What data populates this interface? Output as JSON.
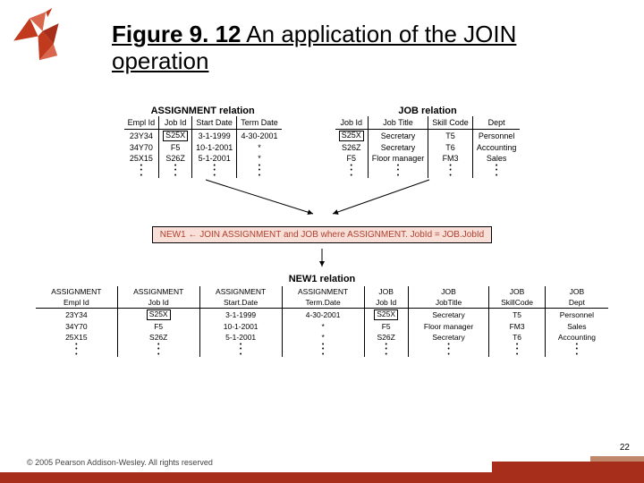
{
  "logo_color": "#c23a1e",
  "title": {
    "bold": "Figure 9. 12",
    "rest": "  An application of the JOIN operation"
  },
  "assignment": {
    "title": "ASSIGNMENT relation",
    "columns": [
      "Empl Id",
      "Job Id",
      "Start Date",
      "Term Date"
    ],
    "rows": [
      [
        "23Y34",
        "S25X",
        "3-1-1999",
        "4-30-2001"
      ],
      [
        "34Y70",
        "F5",
        "10-1-2001",
        "*"
      ],
      [
        "25X15",
        "S26Z",
        "5-1-2001",
        "*"
      ]
    ],
    "boxed_cell": {
      "row": 0,
      "col": 1
    }
  },
  "job": {
    "title": "JOB relation",
    "columns": [
      "Job Id",
      "Job Title",
      "Skill Code",
      "Dept"
    ],
    "rows": [
      [
        "S25X",
        "Secretary",
        "T5",
        "Personnel"
      ],
      [
        "S26Z",
        "Secretary",
        "T6",
        "Accounting"
      ],
      [
        "F5",
        "Floor manager",
        "FM3",
        "Sales"
      ]
    ],
    "boxed_cell": {
      "row": 0,
      "col": 0
    }
  },
  "formula": "NEW1 ← JOIN ASSIGNMENT and JOB where ASSIGNMENT. JobId = JOB.JobId",
  "formula_bg": "#f8e0d8",
  "formula_color": "#b04030",
  "new1": {
    "title": "NEW1 relation",
    "header_groups": [
      "ASSIGNMENT",
      "ASSIGNMENT",
      "ASSIGNMENT",
      "ASSIGNMENT",
      "JOB",
      "JOB",
      "JOB",
      "JOB"
    ],
    "columns": [
      "Empl Id",
      "Job Id",
      "Start.Date",
      "Term.Date",
      "Job Id",
      "JobTitle",
      "SkillCode",
      "Dept"
    ],
    "rows": [
      [
        "23Y34",
        "S25X",
        "3-1-1999",
        "4-30-2001",
        "S25X",
        "Secretary",
        "T5",
        "Personnel"
      ],
      [
        "34Y70",
        "F5",
        "10-1-2001",
        "*",
        "F5",
        "Floor manager",
        "FM3",
        "Sales"
      ],
      [
        "25X15",
        "S26Z",
        "5-1-2001",
        "*",
        "S26Z",
        "Secretary",
        "T6",
        "Accounting"
      ]
    ],
    "boxed_cells": [
      {
        "row": 0,
        "col": 1
      },
      {
        "row": 0,
        "col": 4
      }
    ]
  },
  "slide_number": "22",
  "copyright": "© 2005 Pearson Addison-Wesley. All rights reserved",
  "footer_color": "#a62e1a"
}
